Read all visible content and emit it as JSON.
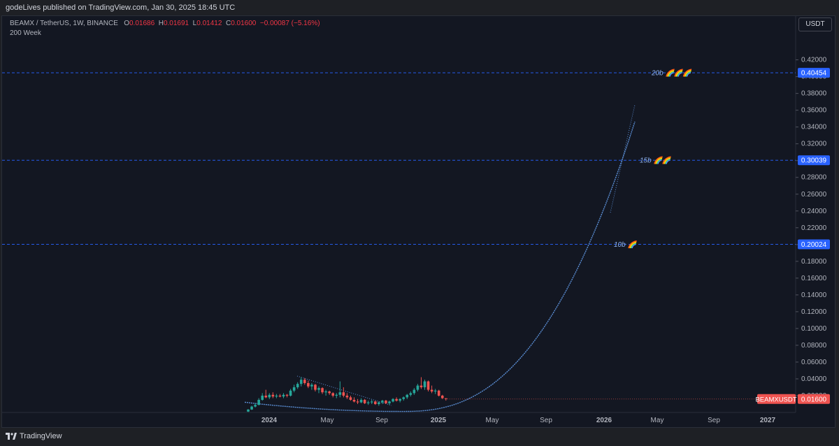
{
  "publisher": "godeLives published on TradingView.com, Jan 30, 2025 18:45 UTC",
  "legend": {
    "symbol": "BEAMX / TetherUS, 1W, BINANCE",
    "o_label": "O",
    "o": "0.01686",
    "h_label": "H",
    "h": "0.01691",
    "l_label": "L",
    "l": "0.01412",
    "c_label": "C",
    "c": "0.01600",
    "change": "−0.00087 (−5.16%)",
    "indicator": "200 Week"
  },
  "currency_button": "USDT",
  "footer_brand": "TradingView",
  "colors": {
    "up": "#26a69a",
    "down": "#ef5350",
    "curve": "#5b8fd6",
    "level": "#2962ff",
    "bg": "#131722"
  },
  "chart_data": {
    "type": "candlestick",
    "ylim": [
      0,
      0.44
    ],
    "y_ticks": [
      "0.42000",
      "0.40000",
      "0.38000",
      "0.36000",
      "0.34000",
      "0.32000",
      "0.30000",
      "0.28000",
      "0.26000",
      "0.24000",
      "0.22000",
      "0.20000",
      "0.18000",
      "0.16000",
      "0.14000",
      "0.12000",
      "0.10000",
      "0.08000",
      "0.06000",
      "0.04000",
      "0.02000"
    ],
    "x_ticks": [
      "2024",
      "May",
      "Sep",
      "2025",
      "May",
      "Sep",
      "2026",
      "May",
      "Sep",
      "2027"
    ],
    "levels": [
      {
        "value": 0.40454,
        "price_label": "0.40454",
        "text": "20b 🌈🌈🌈"
      },
      {
        "value": 0.30039,
        "price_label": "0.30039",
        "text": "15b 🌈🌈"
      },
      {
        "value": 0.20024,
        "price_label": "0.20024",
        "text": "10b 🌈"
      }
    ],
    "last_price": {
      "symbol": "BEAMXUSDT",
      "value": 0.016,
      "label": "0.01600"
    },
    "candles": [
      [
        0.001,
        0.004,
        0.0005,
        0.0035
      ],
      [
        0.0035,
        0.008,
        0.003,
        0.007
      ],
      [
        0.007,
        0.011,
        0.006,
        0.009
      ],
      [
        0.009,
        0.017,
        0.0085,
        0.015
      ],
      [
        0.015,
        0.023,
        0.014,
        0.02
      ],
      [
        0.02,
        0.027,
        0.017,
        0.018
      ],
      [
        0.018,
        0.023,
        0.016,
        0.021
      ],
      [
        0.021,
        0.024,
        0.017,
        0.019
      ],
      [
        0.019,
        0.022,
        0.017,
        0.02
      ],
      [
        0.02,
        0.022,
        0.018,
        0.019
      ],
      [
        0.019,
        0.023,
        0.017,
        0.021
      ],
      [
        0.021,
        0.022,
        0.018,
        0.02
      ],
      [
        0.02,
        0.028,
        0.019,
        0.026
      ],
      [
        0.026,
        0.033,
        0.024,
        0.03
      ],
      [
        0.03,
        0.036,
        0.028,
        0.034
      ],
      [
        0.034,
        0.042,
        0.031,
        0.039
      ],
      [
        0.039,
        0.041,
        0.033,
        0.035
      ],
      [
        0.035,
        0.038,
        0.029,
        0.031
      ],
      [
        0.031,
        0.035,
        0.027,
        0.033
      ],
      [
        0.033,
        0.034,
        0.025,
        0.027
      ],
      [
        0.027,
        0.031,
        0.023,
        0.029
      ],
      [
        0.029,
        0.03,
        0.022,
        0.024
      ],
      [
        0.024,
        0.027,
        0.02,
        0.025
      ],
      [
        0.025,
        0.026,
        0.021,
        0.023
      ],
      [
        0.023,
        0.024,
        0.018,
        0.02
      ],
      [
        0.02,
        0.023,
        0.017,
        0.021
      ],
      [
        0.021,
        0.037,
        0.018,
        0.024
      ],
      [
        0.024,
        0.03,
        0.018,
        0.02
      ],
      [
        0.02,
        0.023,
        0.016,
        0.018
      ],
      [
        0.018,
        0.02,
        0.014,
        0.015
      ],
      [
        0.015,
        0.018,
        0.012,
        0.013
      ],
      [
        0.013,
        0.016,
        0.01,
        0.012
      ],
      [
        0.012,
        0.017,
        0.011,
        0.015
      ],
      [
        0.015,
        0.016,
        0.01,
        0.011
      ],
      [
        0.011,
        0.014,
        0.009,
        0.012
      ],
      [
        0.012,
        0.015,
        0.01,
        0.013
      ],
      [
        0.013,
        0.014,
        0.009,
        0.01
      ],
      [
        0.01,
        0.013,
        0.008,
        0.012
      ],
      [
        0.012,
        0.015,
        0.01,
        0.014
      ],
      [
        0.014,
        0.015,
        0.01,
        0.011
      ],
      [
        0.011,
        0.014,
        0.009,
        0.013
      ],
      [
        0.013,
        0.017,
        0.012,
        0.016
      ],
      [
        0.016,
        0.018,
        0.013,
        0.014
      ],
      [
        0.014,
        0.017,
        0.012,
        0.016
      ],
      [
        0.016,
        0.019,
        0.014,
        0.018
      ],
      [
        0.018,
        0.022,
        0.016,
        0.021
      ],
      [
        0.021,
        0.025,
        0.019,
        0.023
      ],
      [
        0.023,
        0.029,
        0.021,
        0.027
      ],
      [
        0.027,
        0.034,
        0.025,
        0.032
      ],
      [
        0.032,
        0.042,
        0.028,
        0.03
      ],
      [
        0.03,
        0.039,
        0.027,
        0.037
      ],
      [
        0.037,
        0.038,
        0.025,
        0.027
      ],
      [
        0.027,
        0.032,
        0.023,
        0.025
      ],
      [
        0.025,
        0.028,
        0.022,
        0.026
      ],
      [
        0.026,
        0.027,
        0.019,
        0.02
      ],
      [
        0.02,
        0.021,
        0.016,
        0.017
      ],
      [
        0.0169,
        0.0169,
        0.0141,
        0.016
      ]
    ]
  }
}
